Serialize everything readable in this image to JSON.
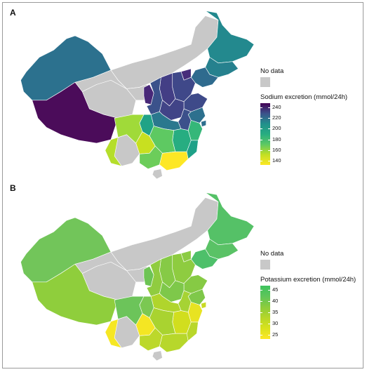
{
  "panels": [
    {
      "label": "A",
      "legend": {
        "nodata_label": "No data",
        "title": "Sodium excretion (mmol/24h)",
        "ticks": [
          "240",
          "220",
          "200",
          "180",
          "160",
          "140"
        ],
        "gradient": [
          "#440154",
          "#3b528b",
          "#21908c",
          "#27ad81",
          "#5dc863",
          "#c2df23",
          "#fde725"
        ]
      },
      "colors": {
        "nodata": "#c8c8c8",
        "xinjiang": "#2c718e",
        "tibet": "#4b0c5a",
        "heilongjiang": "#23898e",
        "jilin": "#26818e",
        "liaoning": "#2f6b8e",
        "beijing": "#472d7b",
        "shandong": "#3e4a89",
        "henan": "#414487",
        "shanxi": "#433e85",
        "shaanxi": "#3b528b",
        "ningxia": "#482878",
        "hubei": "#2a788e",
        "anhui": "#3c508b",
        "jiangsu": "#2d708e",
        "sichuan": "#a0da39",
        "chongqing": "#20a386",
        "hunan": "#5ec962",
        "guizhou": "#c8e020",
        "jiangxi": "#27ad81",
        "fujian": "#1fa188",
        "zhejiang": "#35b779",
        "guangxi": "#6ccd5a",
        "guangdong": "#fde725",
        "yunnan_s": "#b5de2b",
        "shanghai": "#2e6f8e",
        "hebei": "#3f4889"
      }
    },
    {
      "label": "B",
      "legend": {
        "nodata_label": "No data",
        "title": "Potassium excretion (mmol/24h)",
        "ticks": [
          "45",
          "40",
          "35",
          "30",
          "25"
        ],
        "gradient": [
          "#3ec35f",
          "#5fc55a",
          "#8ccc3c",
          "#b6d629",
          "#d9e21c",
          "#fde725"
        ]
      },
      "colors": {
        "nodata": "#c8c8c8",
        "xinjiang": "#72c55a",
        "tibet": "#8fce3c",
        "heilongjiang": "#55c167",
        "jilin": "#5ac266",
        "liaoning": "#4ec06a",
        "beijing": "#8ccc44",
        "shandong": "#86ca44",
        "henan": "#7ec84a",
        "shanxi": "#86ca46",
        "shaanxi": "#90cc40",
        "ningxia": "#6dc454",
        "hubei": "#b0d52c",
        "anhui": "#a6d334",
        "jiangsu": "#7fc84a",
        "sichuan": "#6cc45a",
        "chongqing": "#7bc852",
        "hunan": "#a9d330",
        "guizhou": "#f4e623",
        "jiangxi": "#d1de1e",
        "fujian": "#b9d72a",
        "zhejiang": "#e8e322",
        "guangxi": "#bcd82b",
        "guangdong": "#b7d72b",
        "yunnan_s": "#f6e724",
        "shanghai": "#c9da25",
        "hebei": "#8ecc40"
      }
    }
  ]
}
